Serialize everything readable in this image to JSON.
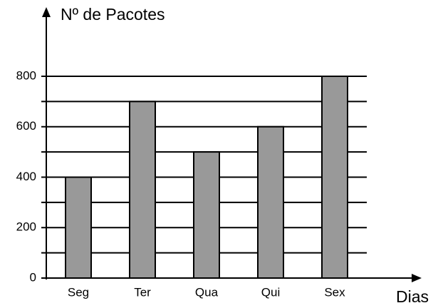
{
  "chart_data": {
    "type": "bar",
    "title": "Nº de Pacotes",
    "x_label": "Dias",
    "categories": [
      "Seg",
      "Ter",
      "Qua",
      "Qui",
      "Sex"
    ],
    "values": [
      400,
      700,
      500,
      600,
      800
    ],
    "color": "#999999",
    "ylim": [
      0,
      800
    ],
    "yticks": [
      0,
      200,
      400,
      600,
      800
    ],
    "minor_yticks": [
      100,
      300,
      500,
      700
    ],
    "grid": true
  }
}
